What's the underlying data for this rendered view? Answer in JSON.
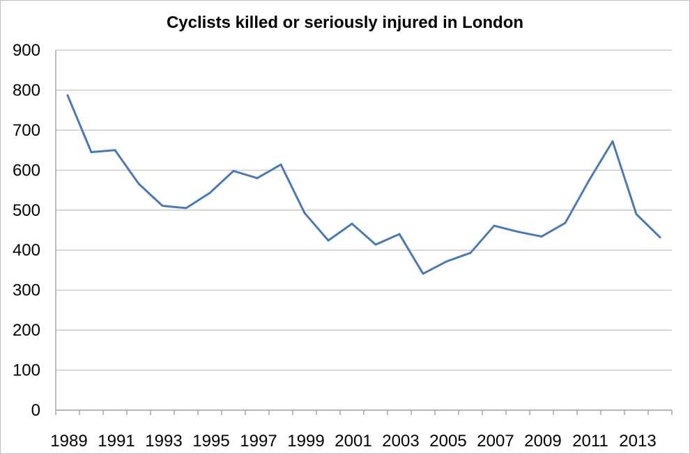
{
  "chart_data": {
    "type": "line",
    "title": "Cyclists killed or seriously injured in London",
    "xlabel": "",
    "ylabel": "",
    "ylim": [
      0,
      900
    ],
    "yticks": [
      0,
      100,
      200,
      300,
      400,
      500,
      600,
      700,
      800,
      900
    ],
    "x": [
      1989,
      1990,
      1991,
      1992,
      1993,
      1994,
      1995,
      1996,
      1997,
      1998,
      1999,
      2000,
      2001,
      2002,
      2003,
      2004,
      2005,
      2006,
      2007,
      2008,
      2009,
      2010,
      2011,
      2012,
      2013,
      2014
    ],
    "xtick_labels": [
      "1989",
      "1991",
      "1993",
      "1995",
      "1997",
      "1999",
      "2001",
      "2003",
      "2005",
      "2007",
      "2009",
      "2011",
      "2013"
    ],
    "grid": true,
    "legend": "none",
    "series": [
      {
        "color": "#4a7ab0",
        "values": [
          787,
          645,
          650,
          566,
          511,
          505,
          543,
          598,
          580,
          614,
          493,
          424,
          466,
          414,
          440,
          341,
          372,
          393,
          461,
          446,
          434,
          468,
          574,
          672,
          490,
          432
        ]
      }
    ]
  }
}
